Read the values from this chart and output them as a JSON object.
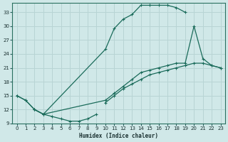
{
  "xlabel": "Humidex (Indice chaleur)",
  "xlim": [
    -0.5,
    23.5
  ],
  "ylim": [
    9,
    35
  ],
  "yticks": [
    9,
    12,
    15,
    18,
    21,
    24,
    27,
    30,
    33
  ],
  "xticks": [
    0,
    1,
    2,
    3,
    4,
    5,
    6,
    7,
    8,
    9,
    10,
    11,
    12,
    13,
    14,
    15,
    16,
    17,
    18,
    19,
    20,
    21,
    22,
    23
  ],
  "bg_color": "#d0e8e8",
  "grid_color": "#b8d4d4",
  "line_color": "#1a6b5a",
  "curve1_x": [
    0,
    1,
    2,
    3,
    10,
    11,
    12,
    13,
    14,
    15,
    16,
    17,
    18,
    19
  ],
  "curve1_y": [
    15,
    14,
    12,
    11,
    25,
    29.5,
    31.5,
    32.5,
    34.5,
    34.5,
    34.5,
    34.5,
    34.0,
    33.0
  ],
  "curve2_x": [
    2,
    3,
    4,
    5,
    6,
    7,
    8,
    9
  ],
  "curve2_y": [
    12,
    11,
    10.5,
    10.0,
    9.5,
    9.5,
    10.0,
    11.0
  ],
  "curve3_x": [
    0,
    1,
    2,
    3,
    10,
    11,
    12,
    13,
    14,
    15,
    16,
    17,
    18,
    19,
    20,
    21,
    22,
    23
  ],
  "curve3_y": [
    15,
    14,
    12,
    11,
    14.0,
    15.5,
    17.0,
    18.5,
    20.0,
    20.5,
    21.0,
    21.5,
    22.0,
    22.0,
    30.0,
    23.0,
    21.5,
    21.0
  ],
  "curve4_x": [
    10,
    11,
    12,
    13,
    14,
    15,
    16,
    17,
    18,
    19,
    20,
    21,
    22,
    23
  ],
  "curve4_y": [
    13.5,
    15.0,
    16.5,
    17.5,
    18.5,
    19.5,
    20.0,
    20.5,
    21.0,
    21.5,
    22.0,
    22.0,
    21.5,
    21.0
  ]
}
